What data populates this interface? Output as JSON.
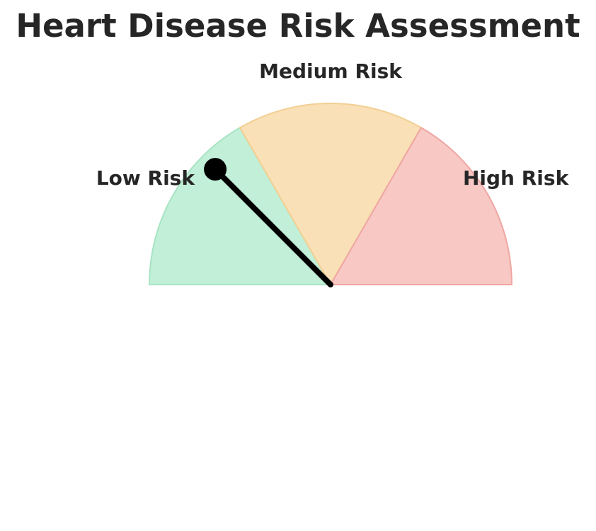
{
  "chart_data": {
    "type": "gauge",
    "title": "Heart Disease Risk Assessment",
    "range": [
      0,
      3
    ],
    "segments": [
      {
        "name": "Low Risk",
        "from": 0,
        "to": 1,
        "fill": "#c1efd7",
        "stroke": "#a8e4c4"
      },
      {
        "name": "Medium Risk",
        "from": 1,
        "to": 2,
        "fill": "#f9e0b6",
        "stroke": "#f3cf93"
      },
      {
        "name": "High Risk",
        "from": 2,
        "to": 3,
        "fill": "#f7c8c4",
        "stroke": "#efa6a1"
      }
    ],
    "needle": {
      "value": 0.75,
      "color": "#000000"
    }
  }
}
